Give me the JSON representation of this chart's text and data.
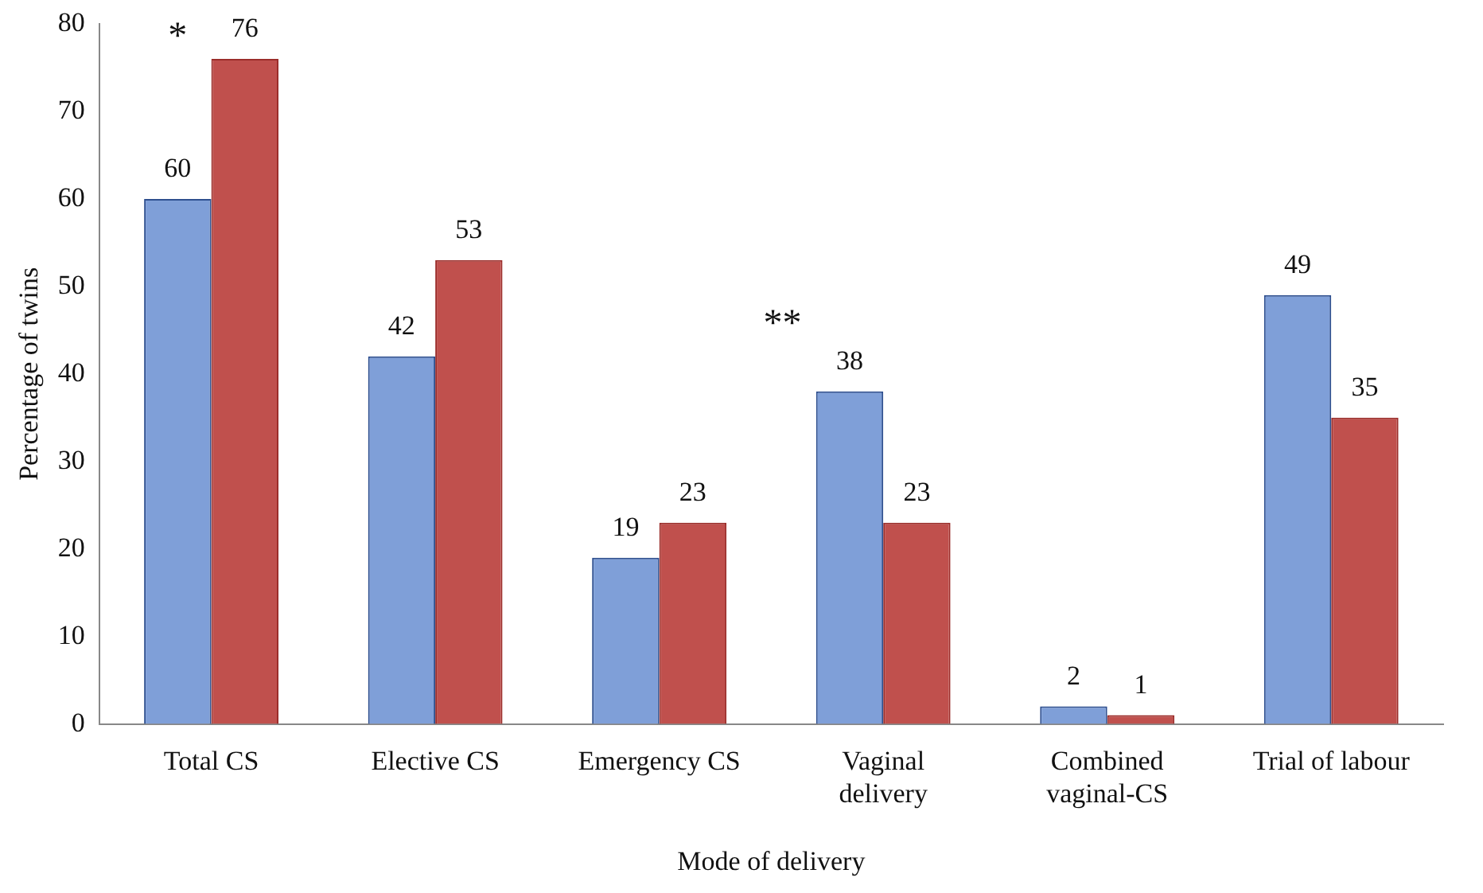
{
  "chart_data": {
    "type": "bar",
    "xlabel": "Mode of delivery",
    "ylabel": "Percentage of twins",
    "categories": [
      "Total CS",
      "Elective CS",
      "Emergency CS",
      "Vaginal delivery",
      "Combined vaginal-CS",
      "Trial of labour"
    ],
    "series": [
      {
        "color": "#7f9fd8",
        "values": [
          60,
          42,
          19,
          38,
          2,
          49
        ]
      },
      {
        "color": "#c0504d",
        "values": [
          76,
          53,
          23,
          23,
          1,
          35
        ]
      }
    ],
    "ylim": [
      0,
      80
    ],
    "yticks": [
      0,
      10,
      20,
      30,
      40,
      50,
      60,
      70,
      80
    ],
    "grid": false,
    "legend": false,
    "data_labels": true,
    "annotations": [
      "*",
      "**"
    ]
  }
}
